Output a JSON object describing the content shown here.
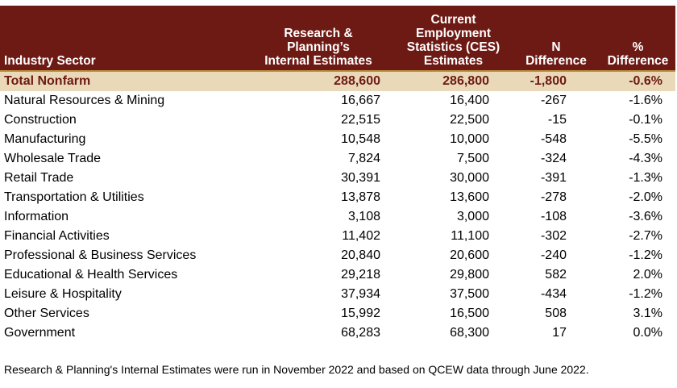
{
  "headers": {
    "sector": "Industry Sector",
    "internal": [
      "Research &",
      "Planning’s",
      "Internal Estimates"
    ],
    "ces": [
      "Current",
      "Employment",
      "Statistics (CES)",
      "Estimates"
    ],
    "n_diff": [
      "N",
      "Difference"
    ],
    "pct_diff": [
      "%",
      "Difference"
    ]
  },
  "total": {
    "sector": "Total Nonfarm",
    "internal": "288,600",
    "ces": "286,800",
    "n_diff": "-1,800",
    "pct_diff": "-0.6%"
  },
  "rows": [
    {
      "sector": "Natural Resources & Mining",
      "internal": "16,667",
      "ces": "16,400",
      "n_diff": "-267",
      "pct_diff": "-1.6%"
    },
    {
      "sector": "Construction",
      "internal": "22,515",
      "ces": "22,500",
      "n_diff": "-15",
      "pct_diff": "-0.1%"
    },
    {
      "sector": "Manufacturing",
      "internal": "10,548",
      "ces": "10,000",
      "n_diff": "-548",
      "pct_diff": "-5.5%"
    },
    {
      "sector": "Wholesale Trade",
      "internal": "7,824",
      "ces": "7,500",
      "n_diff": "-324",
      "pct_diff": "-4.3%"
    },
    {
      "sector": "Retail Trade",
      "internal": "30,391",
      "ces": "30,000",
      "n_diff": "-391",
      "pct_diff": "-1.3%"
    },
    {
      "sector": "Transportation & Utilities",
      "internal": "13,878",
      "ces": "13,600",
      "n_diff": "-278",
      "pct_diff": "-2.0%"
    },
    {
      "sector": "Information",
      "internal": "3,108",
      "ces": "3,000",
      "n_diff": "-108",
      "pct_diff": "-3.6%"
    },
    {
      "sector": "Financial Activities",
      "internal": "11,402",
      "ces": "11,100",
      "n_diff": "-302",
      "pct_diff": "-2.7%"
    },
    {
      "sector": "Professional & Business Services",
      "internal": "20,840",
      "ces": "20,600",
      "n_diff": "-240",
      "pct_diff": "-1.2%"
    },
    {
      "sector": "Educational & Health Services",
      "internal": "29,218",
      "ces": "29,800",
      "n_diff": "582",
      "pct_diff": "2.0%"
    },
    {
      "sector": "Leisure & Hospitality",
      "internal": "37,934",
      "ces": "37,500",
      "n_diff": "-434",
      "pct_diff": "-1.2%"
    },
    {
      "sector": "Other Services",
      "internal": "15,992",
      "ces": "16,500",
      "n_diff": "508",
      "pct_diff": "3.1%"
    },
    {
      "sector": "Government",
      "internal": "68,283",
      "ces": "68,300",
      "n_diff": "17",
      "pct_diff": "0.0%"
    }
  ],
  "footnote": "Research & Planning's Internal Estimates were run in November 2022 and based on QCEW data through June 2022.",
  "colors": {
    "header_bg": "#6e1a14",
    "header_text": "#ffffff",
    "total_bg": "#ead9b9",
    "total_text": "#6e1a14",
    "total_border": "#b98c3c"
  }
}
